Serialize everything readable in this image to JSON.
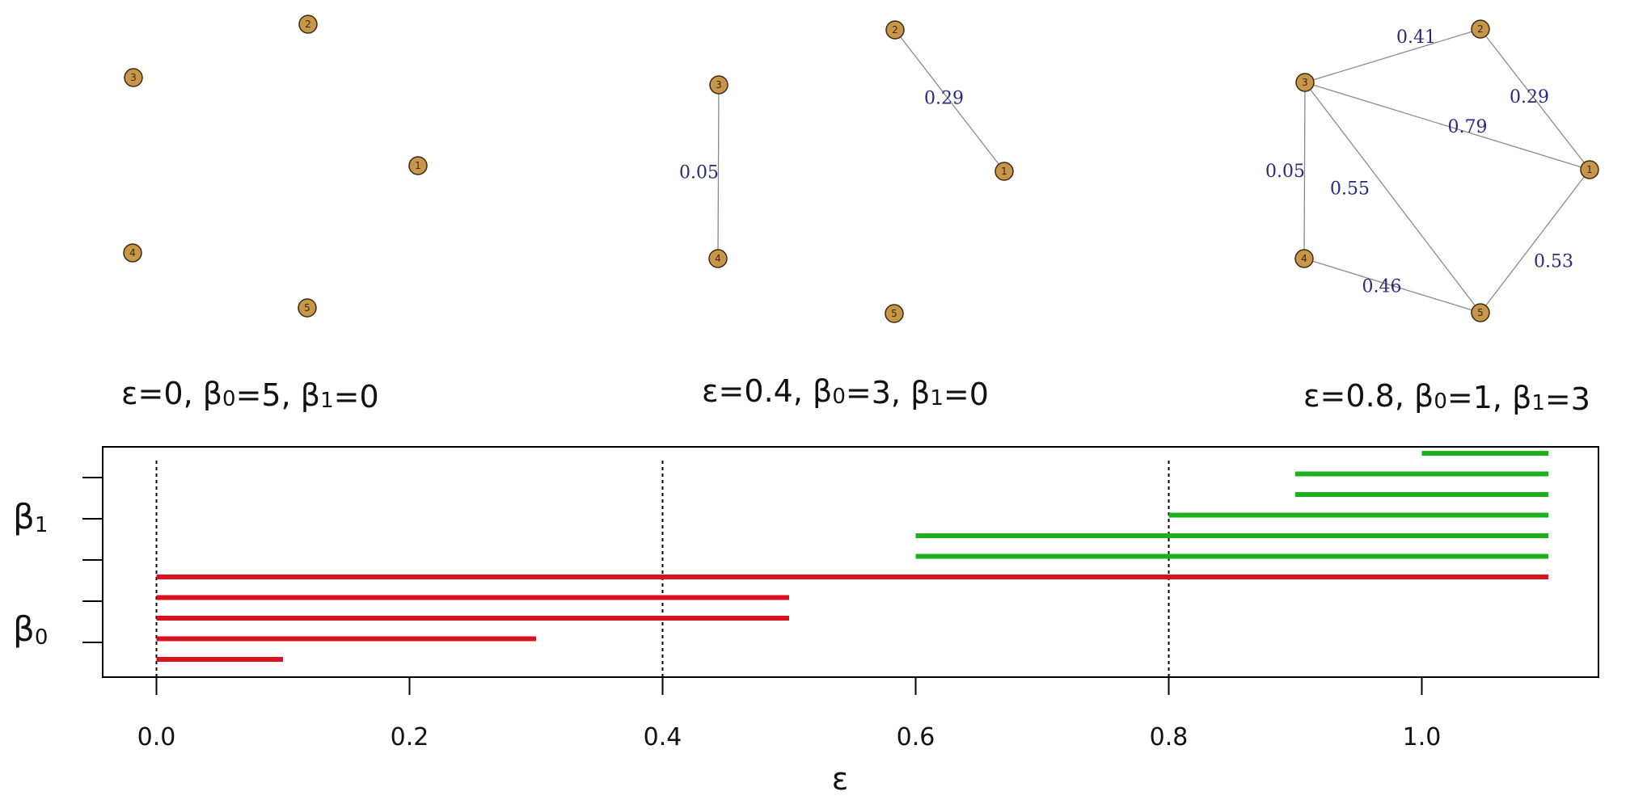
{
  "chart_data": [
    {
      "type": "network",
      "panel": "epsilon_0",
      "caption": "ε=0, β0=5, β1=0",
      "nodes": [
        "1",
        "2",
        "3",
        "4",
        "5"
      ],
      "edges": []
    },
    {
      "type": "network",
      "panel": "epsilon_0.4",
      "caption": "ε=0.4, β0=3, β1=0",
      "nodes": [
        "1",
        "2",
        "3",
        "4",
        "5"
      ],
      "edges": [
        {
          "from": "3",
          "to": "4",
          "weight": "0.05"
        },
        {
          "from": "2",
          "to": "1",
          "weight": "0.29"
        }
      ]
    },
    {
      "type": "network",
      "panel": "epsilon_0.8",
      "caption": "ε=0.8, β0=1, β1=3",
      "nodes": [
        "1",
        "2",
        "3",
        "4",
        "5"
      ],
      "edges": [
        {
          "from": "3",
          "to": "2",
          "weight": "0.41"
        },
        {
          "from": "2",
          "to": "1",
          "weight": "0.29"
        },
        {
          "from": "3",
          "to": "1",
          "weight": "0.79"
        },
        {
          "from": "3",
          "to": "4",
          "weight": "0.05"
        },
        {
          "from": "3",
          "to": "5",
          "weight": "0.55"
        },
        {
          "from": "1",
          "to": "5",
          "weight": "0.53"
        },
        {
          "from": "4",
          "to": "5",
          "weight": "0.46"
        }
      ]
    },
    {
      "type": "barcode",
      "xlabel": "ε",
      "xlim": [
        -0.11,
        1.15
      ],
      "xticks": [
        "0.0",
        "0.2",
        "0.4",
        "0.6",
        "0.8",
        "1.0"
      ],
      "vlines": [
        0.0,
        0.4,
        0.8
      ],
      "row_labels": [
        {
          "label": "β",
          "sub": "1"
        },
        {
          "label": "β",
          "sub": "0"
        }
      ],
      "series": [
        {
          "dimension": "beta0",
          "color": "#d9121f",
          "intervals": [
            [
              0.0,
              0.1
            ],
            [
              0.0,
              0.3
            ],
            [
              0.0,
              0.5
            ],
            [
              0.0,
              0.5
            ],
            [
              0.0,
              1.1
            ]
          ]
        },
        {
          "dimension": "beta1",
          "color": "#1db01d",
          "intervals": [
            [
              0.6,
              1.1
            ],
            [
              0.6,
              1.1
            ],
            [
              0.8,
              1.1
            ],
            [
              0.9,
              1.1
            ],
            [
              0.9,
              1.1
            ],
            [
              1.0,
              1.1
            ]
          ]
        }
      ]
    }
  ]
}
